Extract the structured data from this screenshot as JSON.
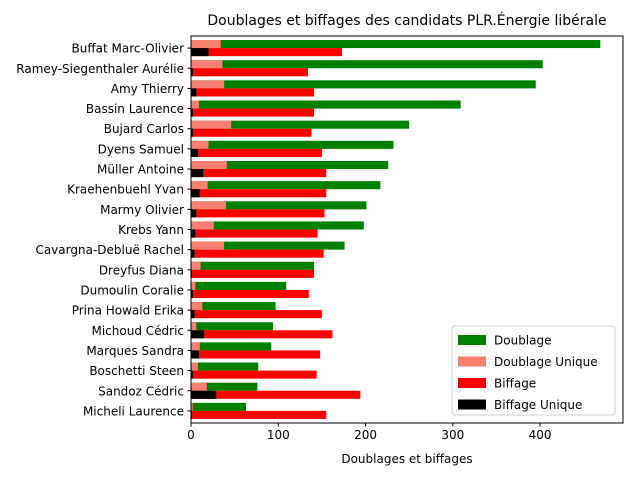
{
  "chart_data": {
    "type": "bar",
    "orientation": "horizontal",
    "title": "Doublages et biffages des candidats PLR.Énergie libérale",
    "xlabel": "Doublages et biffages",
    "ylabel": "",
    "xlim": [
      0,
      495
    ],
    "xticks": [
      "0",
      "100",
      "200",
      "300",
      "400"
    ],
    "legend_position": "bottom-right",
    "grid": false,
    "categories": [
      "Buffat Marc-Olivier",
      "Ramey-Siegenthaler Aurélie",
      "Amy Thierry",
      "Bassin Laurence",
      "Bujard Carlos",
      "Dyens Samuel",
      "Müller Antoine",
      "Kraehenbuehl Yvan",
      "Marmy Olivier",
      "Krebs Yann",
      "Cavargna-Debluë Rachel",
      "Dreyfus Diana",
      "Dumoulin Coralie",
      "Prina Howald Erika",
      "Michoud Cédric",
      "Marques Sandra",
      "Boschetti Steen",
      "Sandoz Cédric",
      "Micheli Laurence"
    ],
    "series": [
      {
        "name": "Doublage",
        "color": "#008000",
        "position": "upper",
        "values": [
          469,
          403,
          395,
          309,
          250,
          232,
          226,
          217,
          201,
          198,
          176,
          141,
          109,
          97,
          94,
          92,
          77,
          76,
          63
        ]
      },
      {
        "name": "Doublage Unique",
        "color": "#fa8072",
        "position": "upper",
        "values": [
          34,
          36,
          38,
          9,
          46,
          20,
          41,
          19,
          40,
          26,
          38,
          11,
          5,
          13,
          6,
          10,
          8,
          18,
          2
        ]
      },
      {
        "name": "Biffage",
        "color": "#ff0000",
        "position": "lower",
        "values": [
          173,
          134,
          141,
          141,
          138,
          150,
          155,
          155,
          153,
          145,
          152,
          141,
          135,
          150,
          162,
          148,
          144,
          194,
          155
        ]
      },
      {
        "name": "Biffage Unique",
        "color": "#000000",
        "position": "lower",
        "values": [
          20,
          2,
          6,
          2,
          2,
          8,
          14,
          10,
          6,
          5,
          4,
          1,
          2,
          4,
          15,
          9,
          2,
          29,
          1
        ]
      }
    ]
  }
}
